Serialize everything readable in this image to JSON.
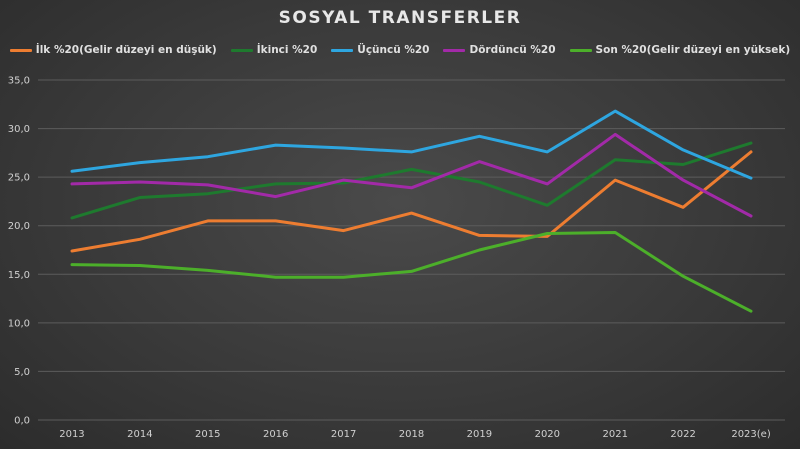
{
  "chart_data": {
    "type": "line",
    "title": "SOSYAL TRANSFERLER",
    "xlabel": "",
    "ylabel": "",
    "ylim": [
      0,
      35
    ],
    "y_ticks": [
      "0,0",
      "5,0",
      "10,0",
      "15,0",
      "20,0",
      "25,0",
      "30,0",
      "35,0"
    ],
    "grid": true,
    "legend_position": "top",
    "categories": [
      "2013",
      "2014",
      "2015",
      "2016",
      "2017",
      "2018",
      "2019",
      "2020",
      "2021",
      "2022",
      "2023(e)"
    ],
    "series": [
      {
        "name": "İlk %20(Gelir düzeyi en düşük)",
        "color": "#ed7d31",
        "values": [
          17.4,
          18.6,
          20.5,
          20.5,
          19.5,
          21.3,
          19.0,
          18.9,
          24.7,
          21.9,
          27.6
        ]
      },
      {
        "name": "İkinci %20",
        "color": "#1e7a2e",
        "values": [
          20.8,
          22.9,
          23.3,
          24.3,
          24.4,
          25.8,
          24.5,
          22.1,
          26.8,
          26.3,
          28.5
        ]
      },
      {
        "name": "Üçüncü %20",
        "color": "#2ea6e0",
        "values": [
          25.6,
          26.5,
          27.1,
          28.3,
          28.0,
          27.6,
          29.2,
          27.6,
          31.8,
          27.8,
          24.9
        ]
      },
      {
        "name": "Dördüncü %20",
        "color": "#a22aa8",
        "values": [
          24.3,
          24.5,
          24.2,
          23.0,
          24.7,
          23.9,
          26.6,
          24.3,
          29.4,
          24.7,
          21.0
        ]
      },
      {
        "name": "Son %20(Gelir düzeyi en yüksek)",
        "color": "#4caf2a",
        "values": [
          16.0,
          15.9,
          15.4,
          14.7,
          14.7,
          15.3,
          17.5,
          19.2,
          19.3,
          14.8,
          11.2
        ]
      }
    ]
  }
}
